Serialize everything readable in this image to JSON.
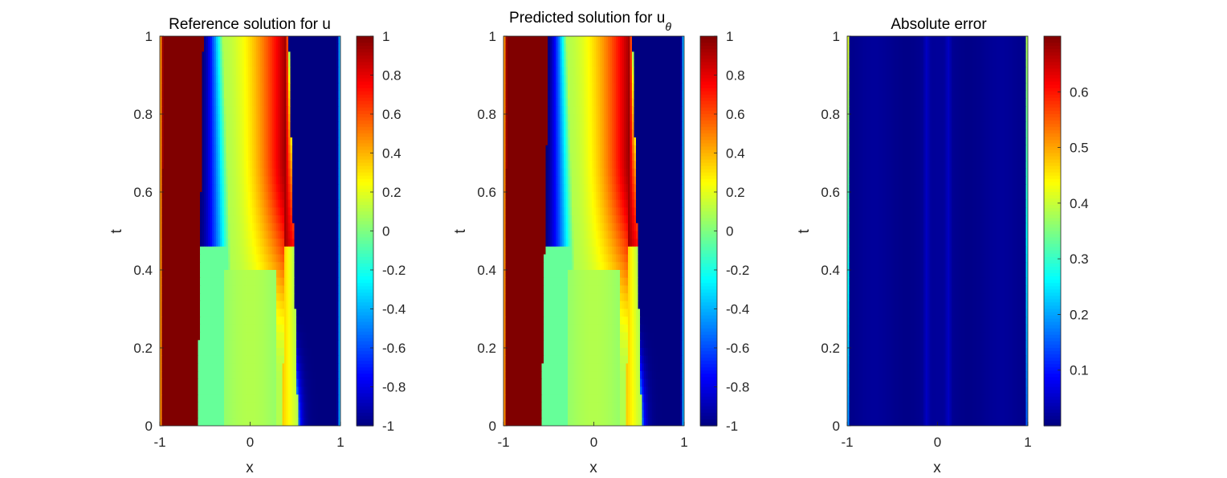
{
  "chart_data": [
    {
      "type": "heatmap",
      "title": "Reference solution for u",
      "xlabel": "x",
      "ylabel": "t",
      "xlim": [
        -1,
        1
      ],
      "ylim": [
        0,
        1
      ],
      "xticks": [
        "-1",
        "0",
        "1"
      ],
      "yticks": [
        "0",
        "0.2",
        "0.4",
        "0.6",
        "0.8",
        "1"
      ],
      "colormap": "jet",
      "colorbar": {
        "range": [
          -1,
          1
        ],
        "ticks": [
          "-1",
          "-0.8",
          "-0.6",
          "-0.4",
          "-0.2",
          "0",
          "0.2",
          "0.4",
          "0.6",
          "0.8",
          "1"
        ]
      },
      "field": "reference"
    },
    {
      "type": "heatmap",
      "title": "Predicted solution for u",
      "title_subscript": "θ",
      "xlabel": "x",
      "ylabel": "t",
      "xlim": [
        -1,
        1
      ],
      "ylim": [
        0,
        1
      ],
      "xticks": [
        "-1",
        "0",
        "1"
      ],
      "yticks": [
        "0",
        "0.2",
        "0.4",
        "0.6",
        "0.8",
        "1"
      ],
      "colormap": "jet",
      "colorbar": {
        "range": [
          -1,
          1
        ],
        "ticks": [
          "-1",
          "-0.8",
          "-0.6",
          "-0.4",
          "-0.2",
          "0",
          "0.2",
          "0.4",
          "0.6",
          "0.8",
          "1"
        ]
      },
      "field": "predicted"
    },
    {
      "type": "heatmap",
      "title": "Absolute error",
      "xlabel": "x",
      "ylabel": "t",
      "xlim": [
        -1,
        1
      ],
      "ylim": [
        0,
        1
      ],
      "xticks": [
        "-1",
        "0",
        "1"
      ],
      "yticks": [
        "0",
        "0.2",
        "0.4",
        "0.6",
        "0.8",
        "1"
      ],
      "colormap": "jet",
      "colorbar": {
        "range": [
          0,
          0.7
        ],
        "ticks": [
          "0.1",
          "0.2",
          "0.3",
          "0.4",
          "0.5",
          "0.6"
        ]
      },
      "field": "error"
    }
  ]
}
